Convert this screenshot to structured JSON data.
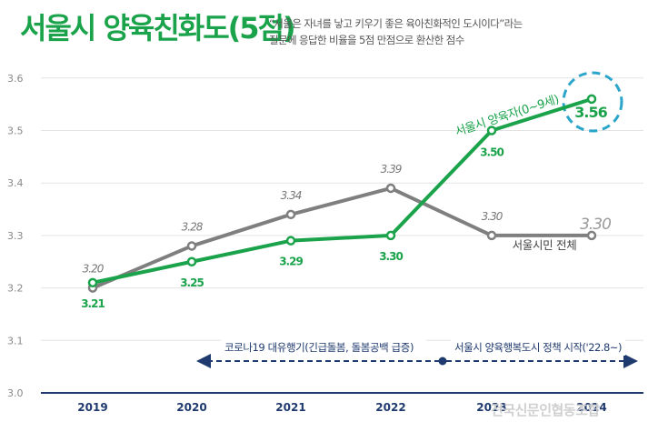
{
  "header": {
    "title": "서울시 양육친화도(5점)",
    "subtitle_line1": "“서울은 자녀를 낳고 키우기 좋은 육아친화적인 도시이다”라는",
    "subtitle_line2": "질문에 응답한 비율을 5점 만점으로 환산한 점수"
  },
  "chart_data": {
    "type": "line",
    "title": "서울시 양육친화도(5점)",
    "categories": [
      "2019",
      "2020",
      "2021",
      "2022",
      "2023",
      "2024"
    ],
    "ylim": [
      3.0,
      3.6
    ],
    "yticks": [
      "3.0",
      "3.1",
      "3.2",
      "3.3",
      "3.4",
      "3.5",
      "3.6"
    ],
    "grid": true,
    "series": [
      {
        "name": "서울시민 전체",
        "color": "#7f7f7f",
        "values": [
          3.2,
          3.28,
          3.34,
          3.39,
          3.3,
          3.3
        ],
        "labels": [
          "3.20",
          "3.28",
          "3.34",
          "3.39",
          "3.30",
          "3.30"
        ]
      },
      {
        "name": "서울시 양육자(0~9세)",
        "color": "#1aa34a",
        "values": [
          3.21,
          3.25,
          3.29,
          3.3,
          3.5,
          3.56
        ],
        "labels": [
          "3.21",
          "3.25",
          "3.29",
          "3.30",
          "3.50",
          "3.56"
        ]
      }
    ],
    "annotations": {
      "covid_period": "코로나19 대유행기(긴급돌봄, 돌봄공백 급증)",
      "policy_period": "서울시 양육행복도시 정책 시작('22.8~)"
    }
  },
  "watermark": "전국신문인협동조합"
}
